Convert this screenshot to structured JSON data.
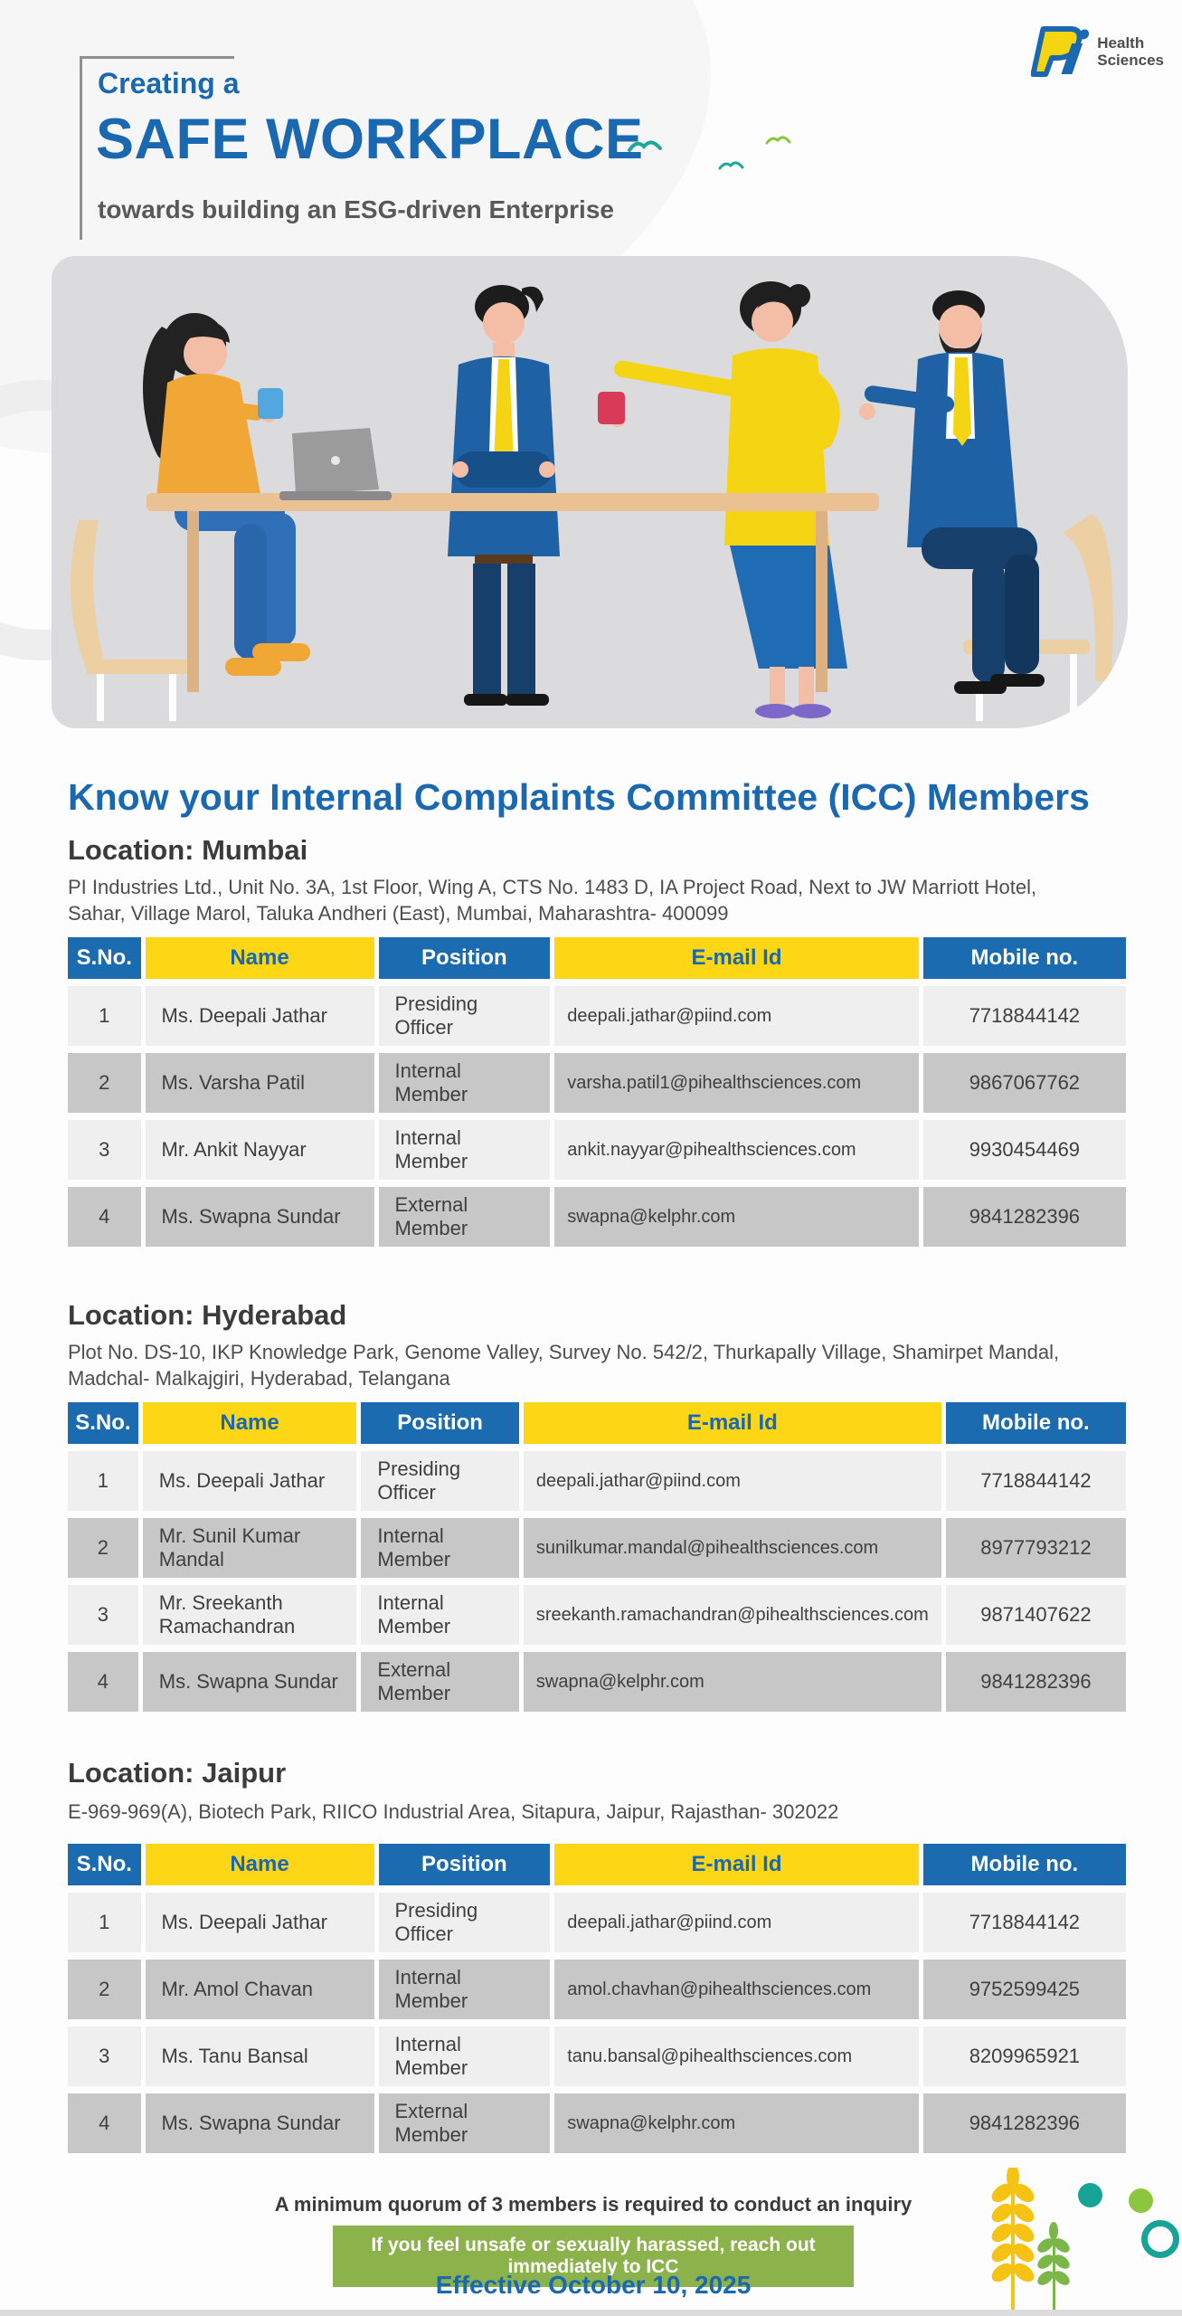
{
  "logo": {
    "line1": "Health",
    "line2": "Sciences"
  },
  "header": {
    "eyebrow": "Creating a",
    "title": "SAFE WORKPLACE",
    "subtitle": "towards building an ESG-driven Enterprise"
  },
  "section_heading": "Know your Internal Complaints Committee (ICC) Members",
  "table": {
    "columns": [
      "S.No.",
      "Name",
      "Position",
      "E-mail Id",
      "Mobile no."
    ]
  },
  "locations": [
    {
      "label": "Location: Mumbai",
      "address": "PI Industries Ltd., Unit No. 3A, 1st Floor, Wing A, CTS No. 1483 D, IA Project Road, Next to JW Marriott Hotel, Sahar, Village Marol, Taluka Andheri (East), Mumbai, Maharashtra- 400099",
      "rows": [
        [
          "1",
          "Ms. Deepali Jathar",
          "Presiding Officer",
          "deepali.jathar@piind.com",
          "7718844142"
        ],
        [
          "2",
          "Ms. Varsha Patil",
          "Internal Member",
          "varsha.patil1@pihealthsciences.com",
          "9867067762"
        ],
        [
          "3",
          "Mr. Ankit Nayyar",
          "Internal Member",
          "ankit.nayyar@pihealthsciences.com",
          "9930454469"
        ],
        [
          "4",
          "Ms. Swapna Sundar",
          "External Member",
          "swapna@kelphr.com",
          "9841282396"
        ]
      ]
    },
    {
      "label": "Location: Hyderabad",
      "address": "Plot No. DS-10, IKP Knowledge Park, Genome Valley, Survey No. 542/2, Thurkapally Village, Shamirpet Mandal, Madchal- Malkajgiri, Hyderabad, Telangana",
      "rows": [
        [
          "1",
          "Ms. Deepali Jathar",
          "Presiding Officer",
          "deepali.jathar@piind.com",
          "7718844142"
        ],
        [
          "2",
          "Mr. Sunil Kumar Mandal",
          "Internal Member",
          "sunilkumar.mandal@pihealthsciences.com",
          "8977793212"
        ],
        [
          "3",
          "Mr. Sreekanth Ramachandran",
          "Internal Member",
          "sreekanth.ramachandran@pihealthsciences.com",
          "9871407622"
        ],
        [
          "4",
          "Ms. Swapna Sundar",
          "External Member",
          "swapna@kelphr.com",
          "9841282396"
        ]
      ]
    },
    {
      "label": "Location: Jaipur",
      "address": "E-969-969(A), Biotech Park, RIICO Industrial Area, Sitapura, Jaipur, Rajasthan- 302022",
      "rows": [
        [
          "1",
          "Ms. Deepali Jathar",
          "Presiding Officer",
          "deepali.jathar@piind.com",
          "7718844142"
        ],
        [
          "2",
          "Mr. Amol Chavan",
          "Internal Member",
          "amol.chavhan@pihealthsciences.com",
          "9752599425"
        ],
        [
          "3",
          "Ms. Tanu Bansal",
          "Internal Member",
          "tanu.bansal@pihealthsciences.com",
          "8209965921"
        ],
        [
          "4",
          "Ms. Swapna Sundar",
          "External Member",
          "swapna@kelphr.com",
          "9841282396"
        ]
      ]
    }
  ],
  "footer": {
    "quorum_note": "A minimum quorum of 3 members is required to conduct an inquiry",
    "banner": "If you feel unsafe or sexually harassed, reach out immediately to ICC",
    "effective": "Effective October 10, 2025"
  },
  "colors": {
    "primary_blue": "#1a68b0",
    "table_header_blue": "#1b6bb0",
    "accent_yellow": "#fdd716",
    "banner_green": "#8cb34b",
    "teal": "#17a398",
    "lime_green": "#8cc63f",
    "row_light": "#f0eff0",
    "row_dark": "#c8c7c8",
    "subtitle_gray": "#595959"
  }
}
